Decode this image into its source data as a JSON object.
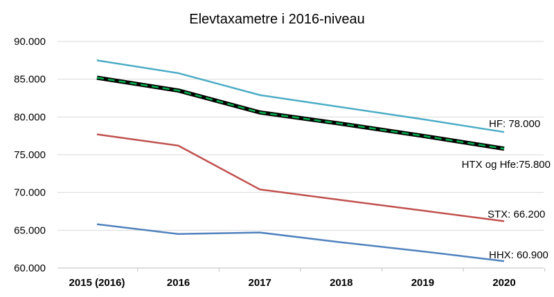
{
  "chart_data": {
    "type": "line",
    "title": "Elevtaxametre i 2016-niveau",
    "categories": [
      "2015 (2016)",
      "2016",
      "2017",
      "2018",
      "2019",
      "2020"
    ],
    "ylim": [
      60000,
      90000
    ],
    "yticks": [
      "90.000",
      "85.000",
      "80.000",
      "75.000",
      "70.000",
      "65.000",
      "60.000"
    ],
    "grid": true,
    "series": [
      {
        "key": "hf",
        "values": [
          87500,
          85800,
          82900,
          81300,
          79700,
          78000
        ],
        "color": "#4bacc6",
        "style": "solid",
        "end_label": "HF: 78.000"
      },
      {
        "key": "htx",
        "values": [
          85200,
          83500,
          80600,
          79100,
          77500,
          75800
        ],
        "color": "#000000",
        "accent": "#00b050",
        "style": "dashed-on-black",
        "end_label": "HTX og Hfe:75.800"
      },
      {
        "key": "stx",
        "values": [
          77700,
          76200,
          70400,
          69000,
          67600,
          66200
        ],
        "color": "#c0504d",
        "style": "solid",
        "end_label": "STX: 66.200"
      },
      {
        "key": "hhx",
        "values": [
          65800,
          64500,
          64700,
          63400,
          62200,
          60900
        ],
        "color": "#4f81bd",
        "style": "solid",
        "end_label": "HHX: 60.900"
      }
    ]
  }
}
